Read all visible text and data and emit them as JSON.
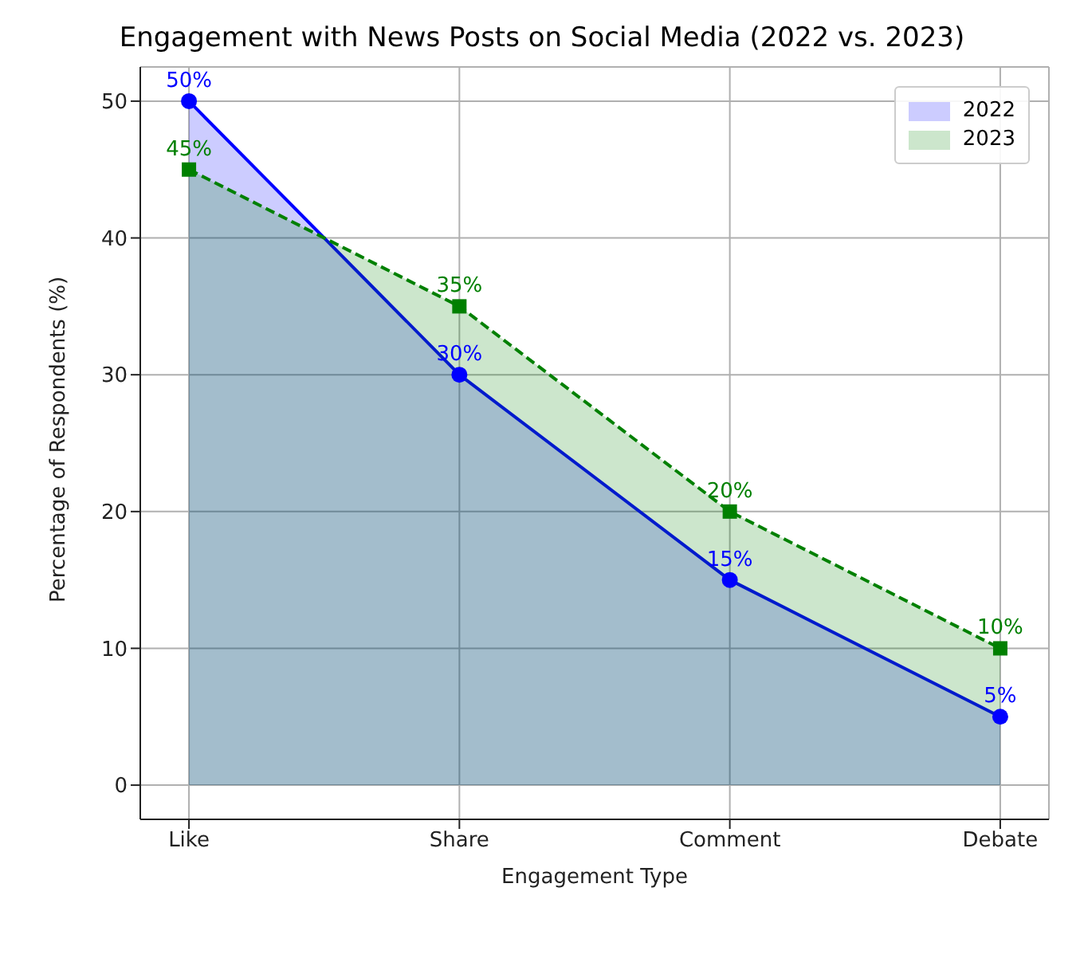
{
  "chart_data": {
    "type": "area",
    "title": "Engagement with News Posts on Social Media (2022 vs. 2023)",
    "xlabel": "Engagement Type",
    "ylabel": "Percentage of Respondents (%)",
    "categories": [
      "Like",
      "Share",
      "Comment",
      "Debate"
    ],
    "series": [
      {
        "name": "2022",
        "color": "#0000ff",
        "values": [
          50,
          30,
          15,
          5
        ],
        "value_labels": [
          "50%",
          "30%",
          "15%",
          "5%"
        ],
        "marker": "circle",
        "line_style": "solid"
      },
      {
        "name": "2023",
        "color": "#008000",
        "values": [
          45,
          35,
          20,
          10
        ],
        "value_labels": [
          "45%",
          "35%",
          "20%",
          "10%"
        ],
        "marker": "square",
        "line_style": "dashed"
      }
    ],
    "ylim": [
      -2.5,
      52.5
    ],
    "yticks": [
      0,
      10,
      20,
      30,
      40,
      50
    ],
    "grid": true,
    "legend": "top right"
  }
}
